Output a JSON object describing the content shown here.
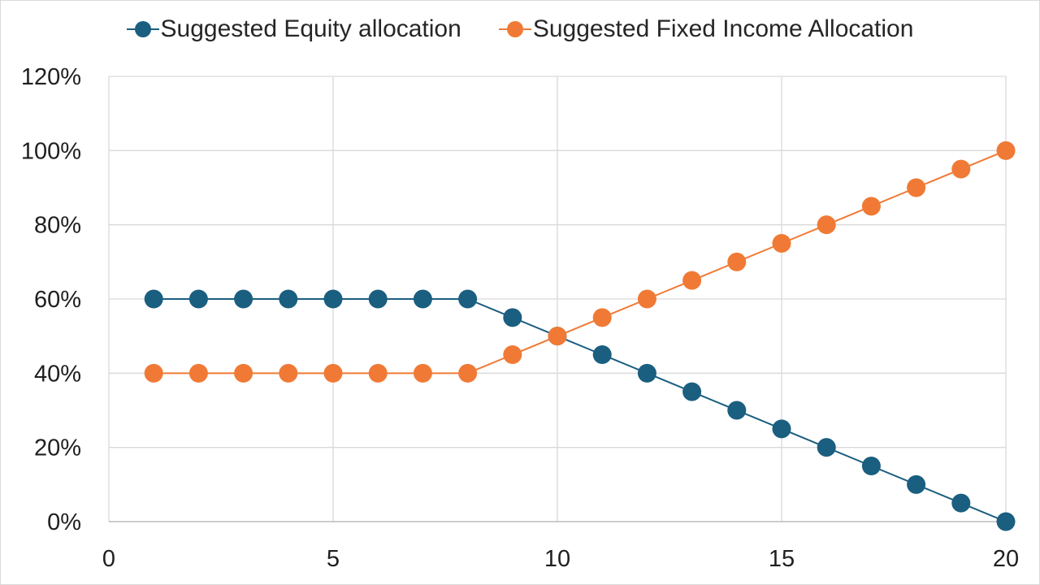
{
  "chart_data": {
    "type": "line",
    "title": "",
    "xlabel": "",
    "ylabel": "",
    "xlim": [
      0,
      20
    ],
    "ylim": [
      0,
      1.2
    ],
    "x_ticks": [
      "0",
      "5",
      "10",
      "15",
      "20"
    ],
    "x_tick_values": [
      0,
      5,
      10,
      15,
      20
    ],
    "y_ticks": [
      "0%",
      "20%",
      "40%",
      "60%",
      "80%",
      "100%",
      "120%"
    ],
    "y_tick_values": [
      0,
      0.2,
      0.4,
      0.6,
      0.8,
      1.0,
      1.2
    ],
    "grid": true,
    "legend_position": "top",
    "x": [
      1,
      2,
      3,
      4,
      5,
      6,
      7,
      8,
      9,
      10,
      11,
      12,
      13,
      14,
      15,
      16,
      17,
      18,
      19,
      20
    ],
    "series": [
      {
        "name": "Suggested Equity allocation",
        "color": "#1a5e80",
        "values": [
          0.6,
          0.6,
          0.6,
          0.6,
          0.6,
          0.6,
          0.6,
          0.6,
          0.55,
          0.5,
          0.45,
          0.4,
          0.35,
          0.3,
          0.25,
          0.2,
          0.15,
          0.1,
          0.05,
          0.0
        ]
      },
      {
        "name": "Suggested Fixed Income Allocation",
        "color": "#f07a35",
        "values": [
          0.4,
          0.4,
          0.4,
          0.4,
          0.4,
          0.4,
          0.4,
          0.4,
          0.45,
          0.5,
          0.55,
          0.6,
          0.65,
          0.7,
          0.75,
          0.8,
          0.85,
          0.9,
          0.95,
          1.0
        ]
      }
    ]
  }
}
